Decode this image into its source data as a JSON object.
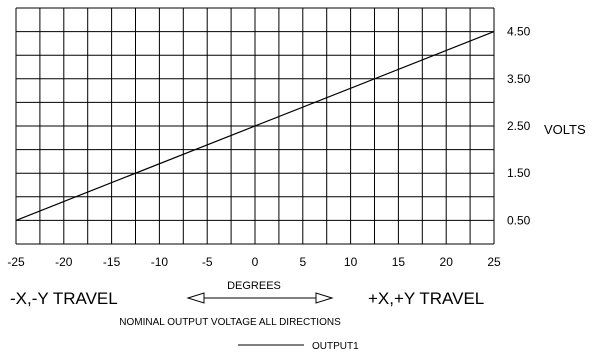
{
  "chart_data": {
    "type": "line",
    "xlabel": "DEGREES",
    "ylabel": "VOLTS",
    "caption": "NOMINAL OUTPUT VOLTAGE ALL DIRECTIONS",
    "left_label": "-X,-Y TRAVEL",
    "right_label": "+X,+Y TRAVEL",
    "xlim": [
      -25,
      25
    ],
    "ylim": [
      0,
      5
    ],
    "x_ticks": [
      "-25",
      "-20",
      "-15",
      "-10",
      "-5",
      "0",
      "5",
      "10",
      "15",
      "20",
      "25"
    ],
    "x_tick_values": [
      -25,
      -20,
      -15,
      -10,
      -5,
      0,
      5,
      10,
      15,
      20,
      25
    ],
    "y_ticks": [
      "4.50",
      "3.50",
      "2.50",
      "1.50",
      "0.50"
    ],
    "y_tick_values": [
      4.5,
      3.5,
      2.5,
      1.5,
      0.5
    ],
    "y_tick_suffix": "VOLTS",
    "grid": true,
    "series": [
      {
        "name": "OUTPUT1",
        "x": [
          -25,
          25
        ],
        "y": [
          0.5,
          4.5
        ]
      }
    ],
    "legend_position": "bottom-center"
  }
}
